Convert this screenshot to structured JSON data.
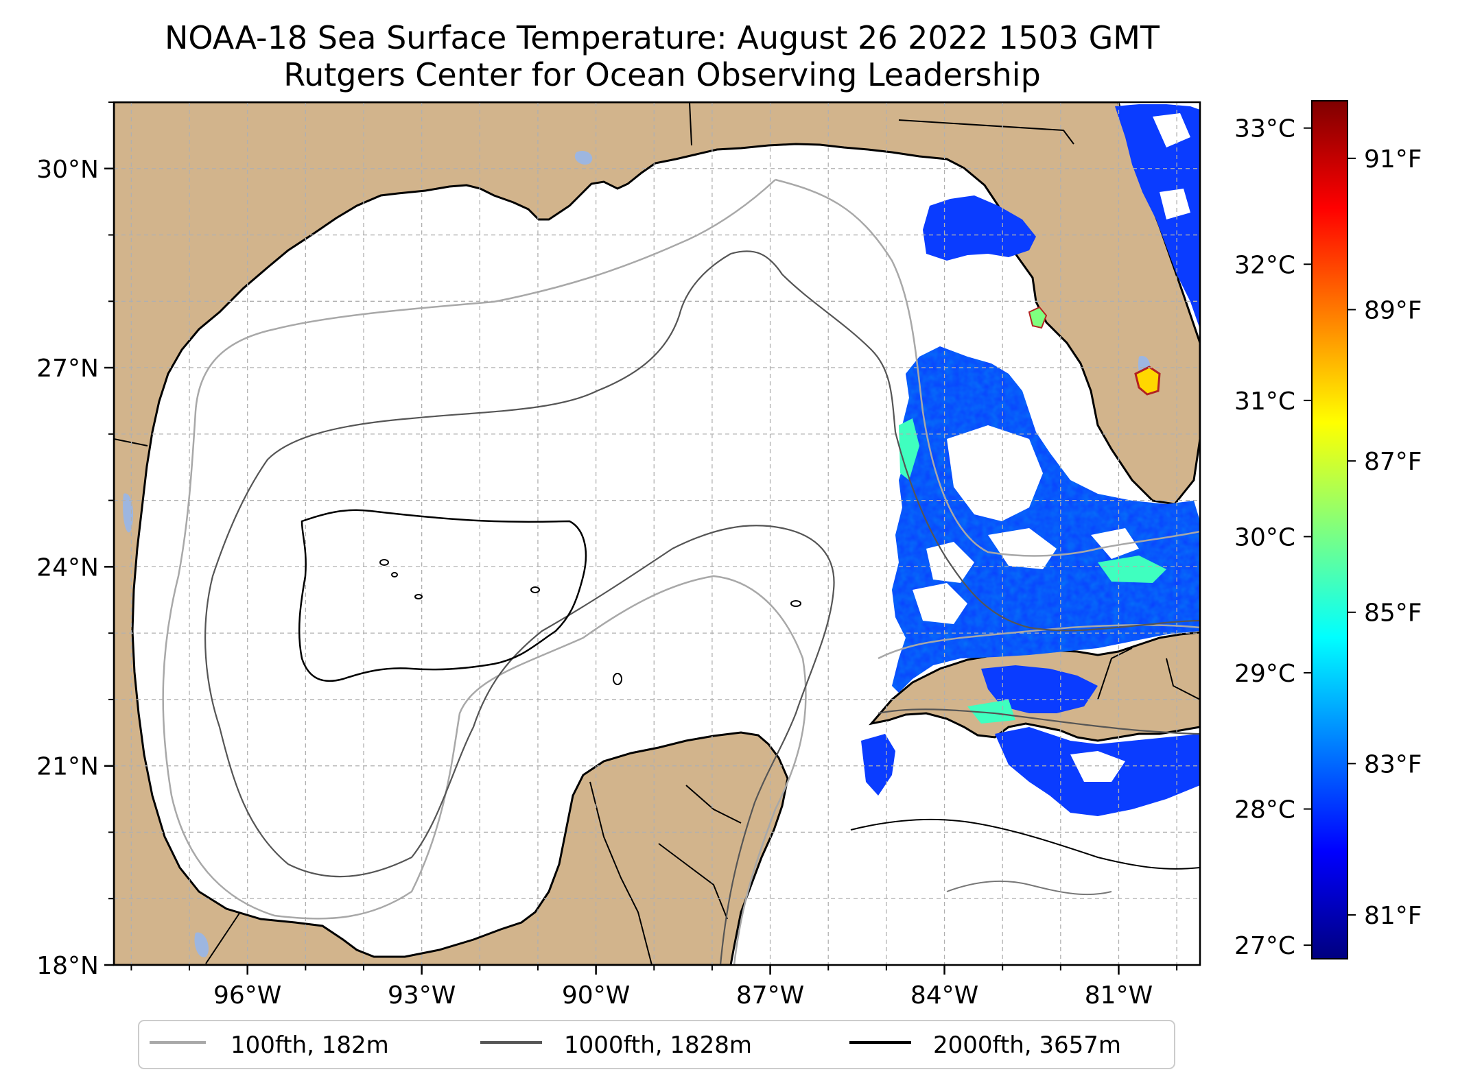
{
  "title": {
    "line1": "NOAA-18 Sea Surface Temperature: August 26 2022 1503 GMT",
    "line2": "Rutgers Center for Ocean Observing Leadership"
  },
  "map": {
    "lon_range": [
      -98.3,
      -79.6
    ],
    "lat_range": [
      18.0,
      31.0
    ],
    "lon_ticks": [
      {
        "value": -96,
        "label": "96°W"
      },
      {
        "value": -93,
        "label": "93°W"
      },
      {
        "value": -90,
        "label": "90°W"
      },
      {
        "value": -87,
        "label": "87°W"
      },
      {
        "value": -84,
        "label": "84°W"
      },
      {
        "value": -81,
        "label": "81°W"
      }
    ],
    "lat_ticks": [
      {
        "value": 18,
        "label": "18°N"
      },
      {
        "value": 21,
        "label": "21°N"
      },
      {
        "value": 24,
        "label": "24°N"
      },
      {
        "value": 27,
        "label": "27°N"
      },
      {
        "value": 30,
        "label": "30°N"
      }
    ],
    "colors": {
      "land": "#d2b48c",
      "inland_water": "#9db6e0",
      "ocean": "#ffffff",
      "grid": "#b0b0b0"
    }
  },
  "colorbar": {
    "range_c": [
      26.9,
      33.2
    ],
    "celsius_ticks": [
      {
        "value": 27,
        "label": "27°C"
      },
      {
        "value": 28,
        "label": "28°C"
      },
      {
        "value": 29,
        "label": "29°C"
      },
      {
        "value": 30,
        "label": "30°C"
      },
      {
        "value": 31,
        "label": "31°C"
      },
      {
        "value": 32,
        "label": "32°C"
      },
      {
        "value": 33,
        "label": "33°C"
      }
    ],
    "fahrenheit_ticks": [
      {
        "value": 81,
        "label": "81°F"
      },
      {
        "value": 83,
        "label": "83°F"
      },
      {
        "value": 85,
        "label": "85°F"
      },
      {
        "value": 87,
        "label": "87°F"
      },
      {
        "value": 89,
        "label": "89°F"
      },
      {
        "value": 91,
        "label": "91°F"
      }
    ],
    "colormap": "jet",
    "stops": [
      "#00007f",
      "#0000ff",
      "#007fff",
      "#00ffff",
      "#7fff7f",
      "#ffff00",
      "#ff7f00",
      "#ff0000",
      "#7f0000"
    ]
  },
  "legend": {
    "items": [
      {
        "label": "100fth, 182m",
        "color": "#a8a8a8"
      },
      {
        "label": "1000fth, 1828m",
        "color": "#555555"
      },
      {
        "label": "2000fth, 3657m",
        "color": "#000000"
      }
    ]
  }
}
